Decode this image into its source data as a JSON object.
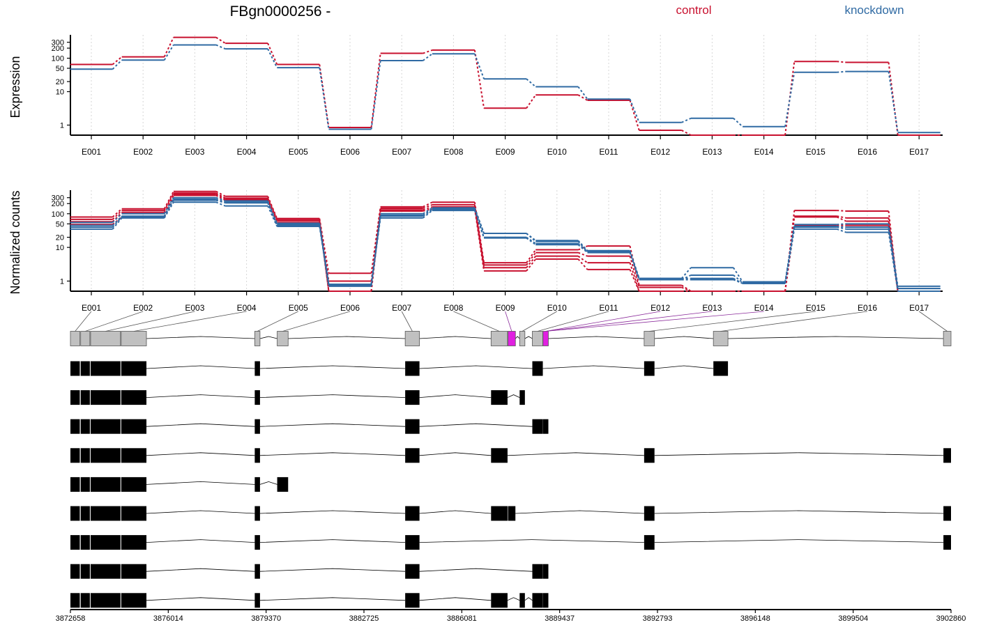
{
  "header": {
    "title": "FBgn0000256 -",
    "legend_control": "control",
    "legend_knockdown": "knockdown"
  },
  "colors": {
    "control": "#c8102e",
    "knockdown": "#2f6aa3",
    "exon_fill": "#c0c0c0",
    "highlight_exon": "#e020e0",
    "highlight_line": "#8a2a9a",
    "transcript": "#000000"
  },
  "chart_data": [
    {
      "type": "line",
      "id": "expression",
      "title": "",
      "ylabel": "Expression",
      "xlabel": "",
      "y_scale": "log",
      "ylim": [
        0.5,
        500
      ],
      "yticks": [
        {
          "v": 1,
          "label": "1"
        },
        {
          "v": 10,
          "label": "10"
        },
        {
          "v": 20,
          "label": "20"
        },
        {
          "v": 50,
          "label": "50"
        },
        {
          "v": 100,
          "label": "100"
        },
        {
          "v": 200,
          "label": "200"
        },
        {
          "v": 300,
          "label": "300"
        }
      ],
      "categories": [
        "E001",
        "E002",
        "E003",
        "E004",
        "E005",
        "E006",
        "E007",
        "E008",
        "E009",
        "E010",
        "E011",
        "E012",
        "E013",
        "E014",
        "E015",
        "E016",
        "E017"
      ],
      "grid": "vertical dotted",
      "series": [
        {
          "name": "control",
          "values": [
            65,
            110,
            420,
            280,
            65,
            0.85,
            140,
            175,
            3.2,
            8.0,
            5.5,
            0.7,
            0.5,
            0.5,
            80,
            75,
            0.5
          ]
        },
        {
          "name": "knockdown",
          "values": [
            47,
            88,
            250,
            190,
            52,
            0.75,
            85,
            135,
            24,
            14,
            6.0,
            1.2,
            1.6,
            0.9,
            38,
            40,
            0.6
          ]
        }
      ]
    },
    {
      "type": "line",
      "id": "normalized_counts",
      "title": "",
      "ylabel": "Normalized counts",
      "xlabel": "",
      "y_scale": "log",
      "ylim": [
        0.5,
        500
      ],
      "yticks": [
        {
          "v": 1,
          "label": "1"
        },
        {
          "v": 10,
          "label": "10"
        },
        {
          "v": 20,
          "label": "20"
        },
        {
          "v": 50,
          "label": "50"
        },
        {
          "v": 100,
          "label": "100"
        },
        {
          "v": 200,
          "label": "200"
        },
        {
          "v": 300,
          "label": "300"
        }
      ],
      "categories": [
        "E001",
        "E002",
        "E003",
        "E004",
        "E005",
        "E006",
        "E007",
        "E008",
        "E009",
        "E010",
        "E011",
        "E012",
        "E013",
        "E014",
        "E015",
        "E016",
        "E017"
      ],
      "grid": "vertical dotted",
      "series": [
        {
          "group": "control",
          "values": [
            80,
            140,
            460,
            330,
            72,
            1.7,
            160,
            220,
            3.5,
            8.5,
            11,
            0.75,
            0.5,
            0.5,
            125,
            120,
            0.5
          ]
        },
        {
          "group": "control",
          "values": [
            68,
            125,
            410,
            290,
            68,
            1.0,
            145,
            185,
            3.0,
            7.0,
            5.5,
            0.65,
            0.5,
            0.5,
            85,
            75,
            0.5
          ]
        },
        {
          "group": "control",
          "values": [
            58,
            110,
            380,
            270,
            62,
            0.5,
            130,
            160,
            2.5,
            5.5,
            3.5,
            0.5,
            0.5,
            0.5,
            80,
            60,
            0.5
          ]
        },
        {
          "group": "control",
          "values": [
            48,
            80,
            350,
            250,
            55,
            0.5,
            120,
            140,
            2.0,
            4.5,
            2.2,
            0.5,
            0.5,
            0.5,
            45,
            45,
            0.5
          ]
        },
        {
          "group": "knockdown",
          "values": [
            55,
            100,
            300,
            240,
            52,
            0.8,
            100,
            150,
            26,
            16,
            8.0,
            1.2,
            2.5,
            0.95,
            48,
            50,
            0.7
          ]
        },
        {
          "group": "knockdown",
          "values": [
            45,
            85,
            270,
            220,
            48,
            0.7,
            90,
            140,
            26,
            15,
            7.5,
            1.1,
            1.5,
            0.9,
            42,
            40,
            0.6
          ]
        },
        {
          "group": "knockdown",
          "values": [
            40,
            80,
            250,
            210,
            45,
            0.8,
            85,
            130,
            20,
            13,
            7.5,
            1.2,
            1.2,
            0.85,
            40,
            35,
            0.6
          ]
        },
        {
          "group": "knockdown",
          "values": [
            35,
            75,
            220,
            170,
            42,
            0.75,
            75,
            125,
            19,
            12,
            7.0,
            1.1,
            1.1,
            0.85,
            35,
            28,
            0.5
          ]
        }
      ]
    },
    {
      "type": "gene_model",
      "id": "gene_structure",
      "title": "",
      "xlabel": "",
      "xlim": [
        3872658,
        3902860
      ],
      "xticks": [
        "3872658",
        "3876014",
        "3879370",
        "3882725",
        "3886081",
        "3889437",
        "3892793",
        "3896148",
        "3899504",
        "3902860"
      ],
      "exon_labels": [
        "E001",
        "E002",
        "E003",
        "E004",
        "E005",
        "E006",
        "E007",
        "E008",
        "E009",
        "E010",
        "E011",
        "E012",
        "E013",
        "E014",
        "E015",
        "E016",
        "E017"
      ],
      "exons": [
        {
          "id": "E001",
          "start": 3872658,
          "end": 3872980,
          "highlight": false
        },
        {
          "id": "E002",
          "start": 3873010,
          "end": 3873325,
          "highlight": false
        },
        {
          "id": "E003",
          "start": 3873350,
          "end": 3874375,
          "highlight": false
        },
        {
          "id": "E004",
          "start": 3874400,
          "end": 3875265,
          "highlight": false
        },
        {
          "id": "E005",
          "start": 3878980,
          "end": 3879160,
          "highlight": false
        },
        {
          "id": "E006",
          "start": 3879750,
          "end": 3880125,
          "highlight": false
        },
        {
          "id": "E007",
          "start": 3884140,
          "end": 3884630,
          "highlight": false
        },
        {
          "id": "E008",
          "start": 3887085,
          "end": 3887650,
          "highlight": false
        },
        {
          "id": "E009",
          "start": 3887665,
          "end": 3887920,
          "highlight": true
        },
        {
          "id": "E010",
          "start": 3888065,
          "end": 3888245,
          "highlight": false
        },
        {
          "id": "E011",
          "start": 3888500,
          "end": 3888860,
          "highlight": false
        },
        {
          "id": "E012",
          "start": 3888865,
          "end": 3889050,
          "highlight": true
        },
        {
          "id": "E013",
          "start": 3892335,
          "end": 3892690,
          "highlight": false
        },
        {
          "id": "E014",
          "start": 3894710,
          "end": 3895210,
          "highlight": false
        },
        {
          "id": "E015",
          "start": 3902600,
          "end": 3902860,
          "highlight": false
        }
      ],
      "label_to_exon": [
        0,
        1,
        2,
        3,
        4,
        5,
        6,
        7,
        8,
        9,
        10,
        11,
        11,
        11,
        12,
        13,
        14
      ],
      "transcripts": [
        [
          0,
          1,
          2,
          3,
          4,
          6,
          10,
          12,
          13
        ],
        [
          0,
          1,
          2,
          3,
          4,
          6,
          7,
          9
        ],
        [
          0,
          1,
          2,
          3,
          4,
          6,
          10,
          11
        ],
        [
          0,
          1,
          2,
          3,
          4,
          6,
          7,
          12,
          14
        ],
        [
          0,
          1,
          2,
          3,
          4,
          5
        ],
        [
          0,
          1,
          2,
          3,
          4,
          6,
          7,
          8,
          12,
          14
        ],
        [
          0,
          1,
          2,
          3,
          4,
          6,
          12,
          14
        ],
        [
          0,
          1,
          2,
          3,
          4,
          6,
          10,
          11
        ],
        [
          0,
          1,
          2,
          3,
          4,
          6,
          7,
          9,
          10,
          11
        ]
      ]
    }
  ]
}
